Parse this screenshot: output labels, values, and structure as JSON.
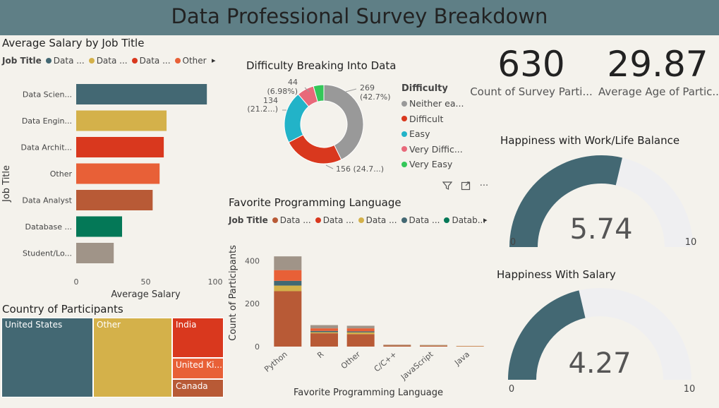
{
  "header": {
    "title": "Data Professional Survey Breakdown"
  },
  "colors": {
    "teal": "#436873",
    "gold": "#d4b14a",
    "red": "#d9381e",
    "orange": "#e86037",
    "brown": "#b85a36",
    "green": "#047857",
    "gray": "#a09488",
    "donut_gray": "#999999",
    "donut_red": "#d9381e",
    "donut_cyan": "#22b3c8",
    "donut_pink": "#e8697a",
    "donut_green": "#34c759",
    "gauge_fill": "#436873",
    "gauge_bg": "#efeff1"
  },
  "salary_chart": {
    "title": "Average Salary by Job Title",
    "legend_title": "Job Title",
    "legend_items": [
      {
        "label": "Data ...",
        "color": "#436873"
      },
      {
        "label": "Data ...",
        "color": "#d4b14a"
      },
      {
        "label": "Data ...",
        "color": "#d9381e"
      },
      {
        "label": "Other",
        "color": "#e86037"
      }
    ],
    "more_icon": "▸",
    "chart_data": {
      "type": "bar",
      "orientation": "horizontal",
      "categories": [
        "Data Scien...",
        "Data Engin...",
        "Data Archit...",
        "Other",
        "Data Analyst",
        "Database ...",
        "Student/Lo..."
      ],
      "values": [
        94,
        65,
        63,
        60,
        55,
        33,
        27
      ],
      "colors": [
        "#436873",
        "#d4b14a",
        "#d9381e",
        "#e86037",
        "#b85a36",
        "#047857",
        "#a09488"
      ],
      "xlabel": "Average Salary",
      "ylabel": "Job Title",
      "xlim": [
        0,
        100
      ],
      "xticks": [
        "0",
        "50",
        "100"
      ]
    }
  },
  "difficulty_chart": {
    "title": "Difficulty Breaking Into Data",
    "legend_title": "Difficulty",
    "legend_items": [
      {
        "label": "Neither ea...",
        "color": "#999999"
      },
      {
        "label": "Difficult",
        "color": "#d9381e"
      },
      {
        "label": "Easy",
        "color": "#22b3c8"
      },
      {
        "label": "Very Diffic...",
        "color": "#e8697a"
      },
      {
        "label": "Very Easy",
        "color": "#34c759"
      }
    ],
    "labels": {
      "neither_count": "269",
      "neither_pct": "(42.7%)",
      "difficult": "156 (24.7...)",
      "easy_count": "134",
      "easy_pct": "(21.2...)",
      "vdiff_count": "44",
      "vdiff_pct": "(6.98%)"
    },
    "chart_data": {
      "type": "pie",
      "donut": true,
      "categories": [
        "Neither easy nor difficult",
        "Difficult",
        "Easy",
        "Very Difficult",
        "Very Easy"
      ],
      "values": [
        269,
        156,
        134,
        44,
        27
      ],
      "colors": [
        "#999999",
        "#d9381e",
        "#22b3c8",
        "#e8697a",
        "#34c759"
      ]
    }
  },
  "kpis": [
    {
      "value": "630",
      "label": "Count of Survey Parti..."
    },
    {
      "value": "29.87",
      "label": "Average Age of Partic..."
    }
  ],
  "gauges": [
    {
      "title": "Happiness with Work/Life Balance",
      "value": 5.74,
      "display": "5.74",
      "min": "0",
      "max": "10",
      "min_num": 0,
      "max_num": 10
    },
    {
      "title": "Happiness With Salary",
      "value": 4.27,
      "display": "4.27",
      "min": "0",
      "max": "10",
      "min_num": 0,
      "max_num": 10
    }
  ],
  "language_chart": {
    "title": "Favorite Programming Language",
    "legend_title": "Job Title",
    "legend_items": [
      {
        "label": "Data ...",
        "color": "#b85a36"
      },
      {
        "label": "Data ...",
        "color": "#d9381e"
      },
      {
        "label": "Data ...",
        "color": "#d4b14a"
      },
      {
        "label": "Data ...",
        "color": "#436873"
      },
      {
        "label": "Datab...",
        "color": "#047857"
      }
    ],
    "more_icon": "▸",
    "toolbar": {
      "filter_icon": "filter-icon",
      "focus_icon": "focus-mode-icon",
      "more_options": "···"
    },
    "chart_data": {
      "type": "bar",
      "stacked": true,
      "categories": [
        "Python",
        "R",
        "Other",
        "C/C++",
        "JavaScript",
        "Java"
      ],
      "series": [
        {
          "name": "Data Analyst",
          "color": "#b85a36",
          "values": [
            258,
            62,
            58,
            5,
            4,
            2
          ]
        },
        {
          "name": "Data Engineer",
          "color": "#d4b14a",
          "values": [
            26,
            5,
            8,
            1,
            1,
            1
          ]
        },
        {
          "name": "Data Scientist",
          "color": "#436873",
          "values": [
            22,
            6,
            5,
            1,
            1,
            0
          ]
        },
        {
          "name": "Other",
          "color": "#e86037",
          "values": [
            50,
            12,
            14,
            1,
            1,
            0
          ]
        },
        {
          "name": "Student/Looking",
          "color": "#a09488",
          "values": [
            64,
            15,
            12,
            1,
            1,
            0
          ]
        }
      ],
      "xlabel": "Favorite Programming Language",
      "ylabel": "Count of Participants",
      "ylim": [
        0,
        460
      ],
      "yticks": [
        "0",
        "200",
        "400"
      ]
    }
  },
  "country_chart": {
    "title": "Country of Participants",
    "chart_data": {
      "type": "treemap",
      "categories": [
        "United States",
        "Other",
        "India",
        "United Ki...",
        "Canada"
      ],
      "colors": [
        "#436873",
        "#d4b14a",
        "#d9381e",
        "#e86037",
        "#b85a36"
      ]
    }
  }
}
